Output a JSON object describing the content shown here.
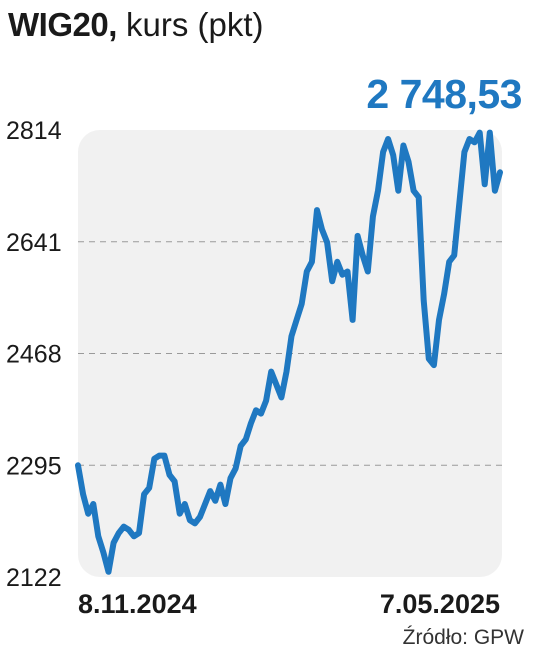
{
  "title": {
    "bold": "WIG20,",
    "rest": " kurs (pkt)"
  },
  "last_value_label": "2 748,53",
  "source": "Źródło: GPW",
  "colors": {
    "line": "#1f78c1",
    "accent_text": "#1f78c1",
    "plot_bg": "#f1f1f1",
    "grid": "#9a9a9a",
    "text": "#1a1a1a"
  },
  "chart_data": {
    "type": "line",
    "title": "WIG20, kurs (pkt)",
    "xlabel": "",
    "ylabel": "",
    "ylim": [
      2122,
      2814
    ],
    "yticks": [
      2122,
      2295,
      2468,
      2641,
      2814
    ],
    "ytick_labels": [
      "2122",
      "2295",
      "2468",
      "2641",
      "2814"
    ],
    "xtick_labels": [
      "8.11.2024",
      "7.05.2025"
    ],
    "grid": "horizontal dashed",
    "series": [
      {
        "values": [
          2295,
          2250,
          2220,
          2235,
          2185,
          2160,
          2130,
          2175,
          2190,
          2200,
          2195,
          2185,
          2190,
          2250,
          2260,
          2305,
          2310,
          2310,
          2280,
          2270,
          2220,
          2235,
          2210,
          2205,
          2215,
          2235,
          2255,
          2240,
          2265,
          2235,
          2275,
          2290,
          2325,
          2335,
          2360,
          2380,
          2375,
          2395,
          2440,
          2420,
          2400,
          2440,
          2495,
          2520,
          2545,
          2595,
          2610,
          2690,
          2660,
          2640,
          2580,
          2610,
          2590,
          2595,
          2520,
          2650,
          2620,
          2595,
          2680,
          2720,
          2780,
          2800,
          2775,
          2720,
          2790,
          2765,
          2720,
          2710,
          2550,
          2460,
          2450,
          2520,
          2560,
          2610,
          2620,
          2700,
          2780,
          2800,
          2795,
          2810,
          2730,
          2810,
          2720,
          2748.53
        ]
      }
    ],
    "last_value": 2748.53
  }
}
